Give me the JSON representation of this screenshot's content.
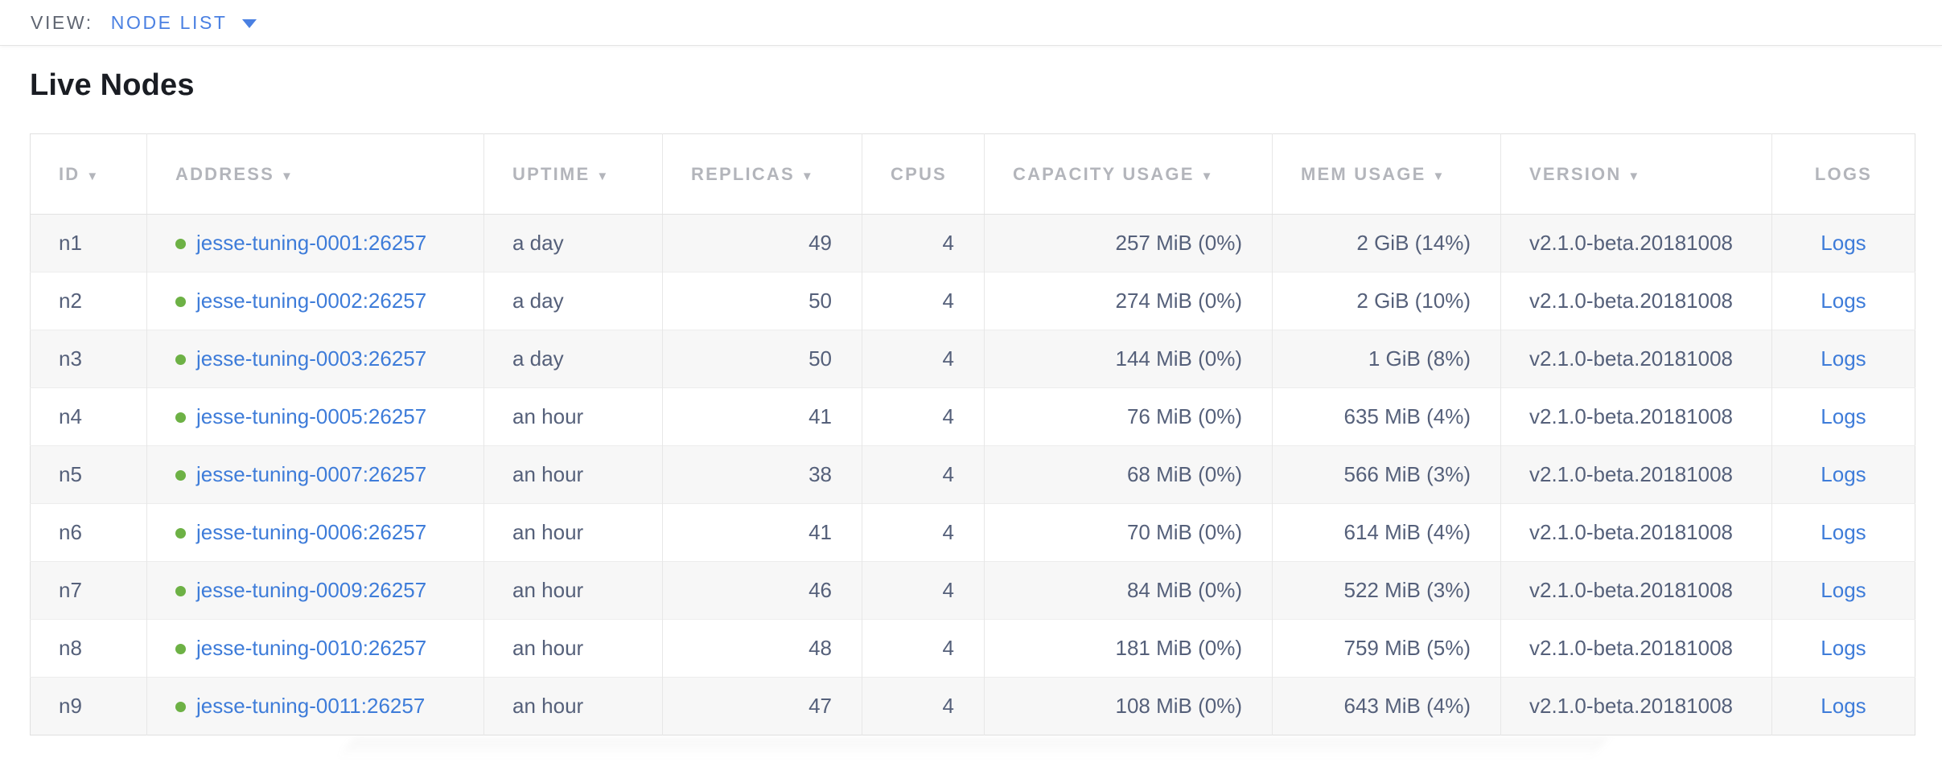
{
  "view_bar": {
    "label": "VIEW:",
    "selected": "NODE LIST"
  },
  "page": {
    "title": "Live Nodes"
  },
  "colors": {
    "accent_blue": "#4a80e2",
    "link_blue": "#3e7cd9",
    "node_healthy_green": "#6db145",
    "header_gray": "#b3b5bb",
    "cell_text": "#55607a",
    "row_stripe": "#f7f7f7"
  },
  "table": {
    "columns": [
      {
        "label": "ID",
        "sorted": true
      },
      {
        "label": "ADDRESS",
        "sorted": true
      },
      {
        "label": "UPTIME",
        "sorted": true
      },
      {
        "label": "REPLICAS",
        "sorted": true
      },
      {
        "label": "CPUS",
        "sorted": false
      },
      {
        "label": "CAPACITY USAGE",
        "sorted": true
      },
      {
        "label": "MEM USAGE",
        "sorted": true
      },
      {
        "label": "VERSION",
        "sorted": true
      },
      {
        "label": "LOGS",
        "sorted": false
      }
    ],
    "rows": [
      {
        "id": "n1",
        "address": "jesse-tuning-0001:26257",
        "uptime": "a day",
        "replicas": "49",
        "cpus": "4",
        "capacity_usage": "257 MiB (0%)",
        "mem_usage": "2 GiB (14%)",
        "version": "v2.1.0-beta.20181008",
        "logs": "Logs"
      },
      {
        "id": "n2",
        "address": "jesse-tuning-0002:26257",
        "uptime": "a day",
        "replicas": "50",
        "cpus": "4",
        "capacity_usage": "274 MiB (0%)",
        "mem_usage": "2 GiB (10%)",
        "version": "v2.1.0-beta.20181008",
        "logs": "Logs"
      },
      {
        "id": "n3",
        "address": "jesse-tuning-0003:26257",
        "uptime": "a day",
        "replicas": "50",
        "cpus": "4",
        "capacity_usage": "144 MiB (0%)",
        "mem_usage": "1 GiB (8%)",
        "version": "v2.1.0-beta.20181008",
        "logs": "Logs"
      },
      {
        "id": "n4",
        "address": "jesse-tuning-0005:26257",
        "uptime": "an hour",
        "replicas": "41",
        "cpus": "4",
        "capacity_usage": "76 MiB (0%)",
        "mem_usage": "635 MiB (4%)",
        "version": "v2.1.0-beta.20181008",
        "logs": "Logs"
      },
      {
        "id": "n5",
        "address": "jesse-tuning-0007:26257",
        "uptime": "an hour",
        "replicas": "38",
        "cpus": "4",
        "capacity_usage": "68 MiB (0%)",
        "mem_usage": "566 MiB (3%)",
        "version": "v2.1.0-beta.20181008",
        "logs": "Logs"
      },
      {
        "id": "n6",
        "address": "jesse-tuning-0006:26257",
        "uptime": "an hour",
        "replicas": "41",
        "cpus": "4",
        "capacity_usage": "70 MiB (0%)",
        "mem_usage": "614 MiB (4%)",
        "version": "v2.1.0-beta.20181008",
        "logs": "Logs"
      },
      {
        "id": "n7",
        "address": "jesse-tuning-0009:26257",
        "uptime": "an hour",
        "replicas": "46",
        "cpus": "4",
        "capacity_usage": "84 MiB (0%)",
        "mem_usage": "522 MiB (3%)",
        "version": "v2.1.0-beta.20181008",
        "logs": "Logs"
      },
      {
        "id": "n8",
        "address": "jesse-tuning-0010:26257",
        "uptime": "an hour",
        "replicas": "48",
        "cpus": "4",
        "capacity_usage": "181 MiB (0%)",
        "mem_usage": "759 MiB (5%)",
        "version": "v2.1.0-beta.20181008",
        "logs": "Logs"
      },
      {
        "id": "n9",
        "address": "jesse-tuning-0011:26257",
        "uptime": "an hour",
        "replicas": "47",
        "cpus": "4",
        "capacity_usage": "108 MiB (0%)",
        "mem_usage": "643 MiB (4%)",
        "version": "v2.1.0-beta.20181008",
        "logs": "Logs"
      }
    ]
  }
}
